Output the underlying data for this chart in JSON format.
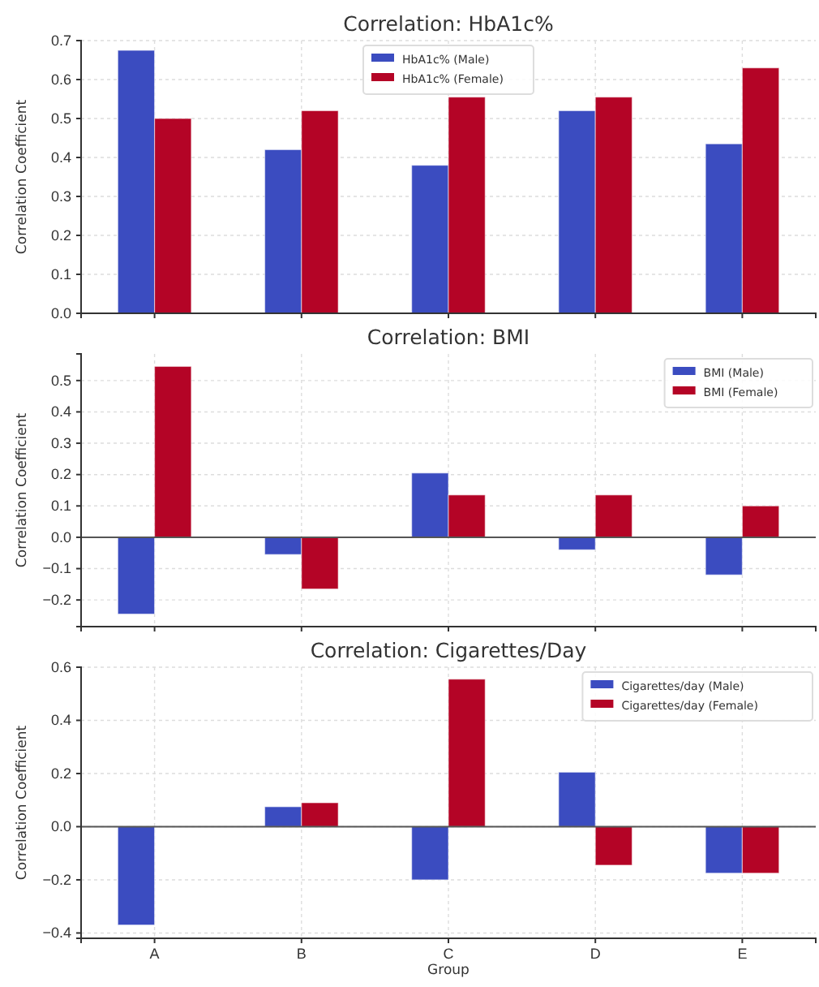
{
  "chart_data": [
    {
      "type": "bar",
      "title": "Correlation: HbA1c%",
      "ylabel": "Correlation Coefficient",
      "categories": [
        null,
        null,
        null,
        null,
        null
      ],
      "ylim": [
        0,
        0.7
      ],
      "yticks": [
        {
          "value": 0,
          "label": "0.0"
        },
        0.1,
        0.2,
        0.3,
        0.4,
        0.5,
        0.6,
        0.7
      ],
      "grid": true,
      "legend": "top",
      "tick_labels": "y",
      "series": [
        {
          "name": "HbA1c% (Male)",
          "color": "#3b4cc0",
          "values": [
            0.675,
            0.42,
            0.38,
            0.52,
            0.435
          ]
        },
        {
          "name": "HbA1c% (Female)",
          "color": "#b40426",
          "values": [
            0.5,
            0.52,
            0.555,
            0.555,
            0.63
          ]
        }
      ]
    },
    {
      "type": "bar",
      "title": "Correlation: BMI",
      "ylabel": "Correlation Coefficient",
      "categories": [
        null,
        null,
        null,
        null,
        null
      ],
      "ylim": [
        -0.285,
        0.585
      ],
      "yticks": [
        {
          "value": -0.2,
          "label": "−0.2"
        },
        {
          "value": -0.1,
          "label": "−0.1"
        },
        {
          "value": 0,
          "label": "0.0"
        },
        0.1,
        0.2,
        0.3,
        0.4,
        0.5
      ],
      "grid": true,
      "legend": "top right",
      "tick_labels": "y",
      "ref_lines": [
        {
          "axis": "y",
          "value": 0,
          "color": "#555555"
        }
      ],
      "series": [
        {
          "name": "BMI (Male)",
          "color": "#3b4cc0",
          "values": [
            -0.245,
            -0.055,
            0.205,
            -0.04,
            -0.12
          ]
        },
        {
          "name": "BMI (Female)",
          "color": "#b40426",
          "values": [
            0.545,
            -0.165,
            0.135,
            0.135,
            0.1
          ]
        }
      ]
    },
    {
      "type": "bar",
      "title": "Correlation: Cigarettes/Day",
      "ylabel": "Correlation Coefficient",
      "xlabel": "Group",
      "categories": [
        "A",
        "B",
        "C",
        "D",
        "E"
      ],
      "ylim": [
        -0.42,
        0.6
      ],
      "yticks": [
        {
          "value": -0.4,
          "label": "−0.4"
        },
        {
          "value": -0.2,
          "label": "−0.2"
        },
        {
          "value": 0,
          "label": "0.0"
        },
        0.2,
        0.4,
        0.6
      ],
      "grid": true,
      "legend": "top right",
      "ref_lines": [
        {
          "axis": "y",
          "value": 0,
          "color": "#555555"
        }
      ],
      "series": [
        {
          "name": "Cigarettes/day (Male)",
          "color": "#3b4cc0",
          "values": [
            -0.37,
            0.075,
            -0.2,
            0.205,
            -0.175
          ]
        },
        {
          "name": "Cigarettes/day (Female)",
          "color": "#b40426",
          "values": [
            0,
            0.09,
            0.555,
            -0.145,
            -0.175
          ]
        }
      ]
    }
  ]
}
